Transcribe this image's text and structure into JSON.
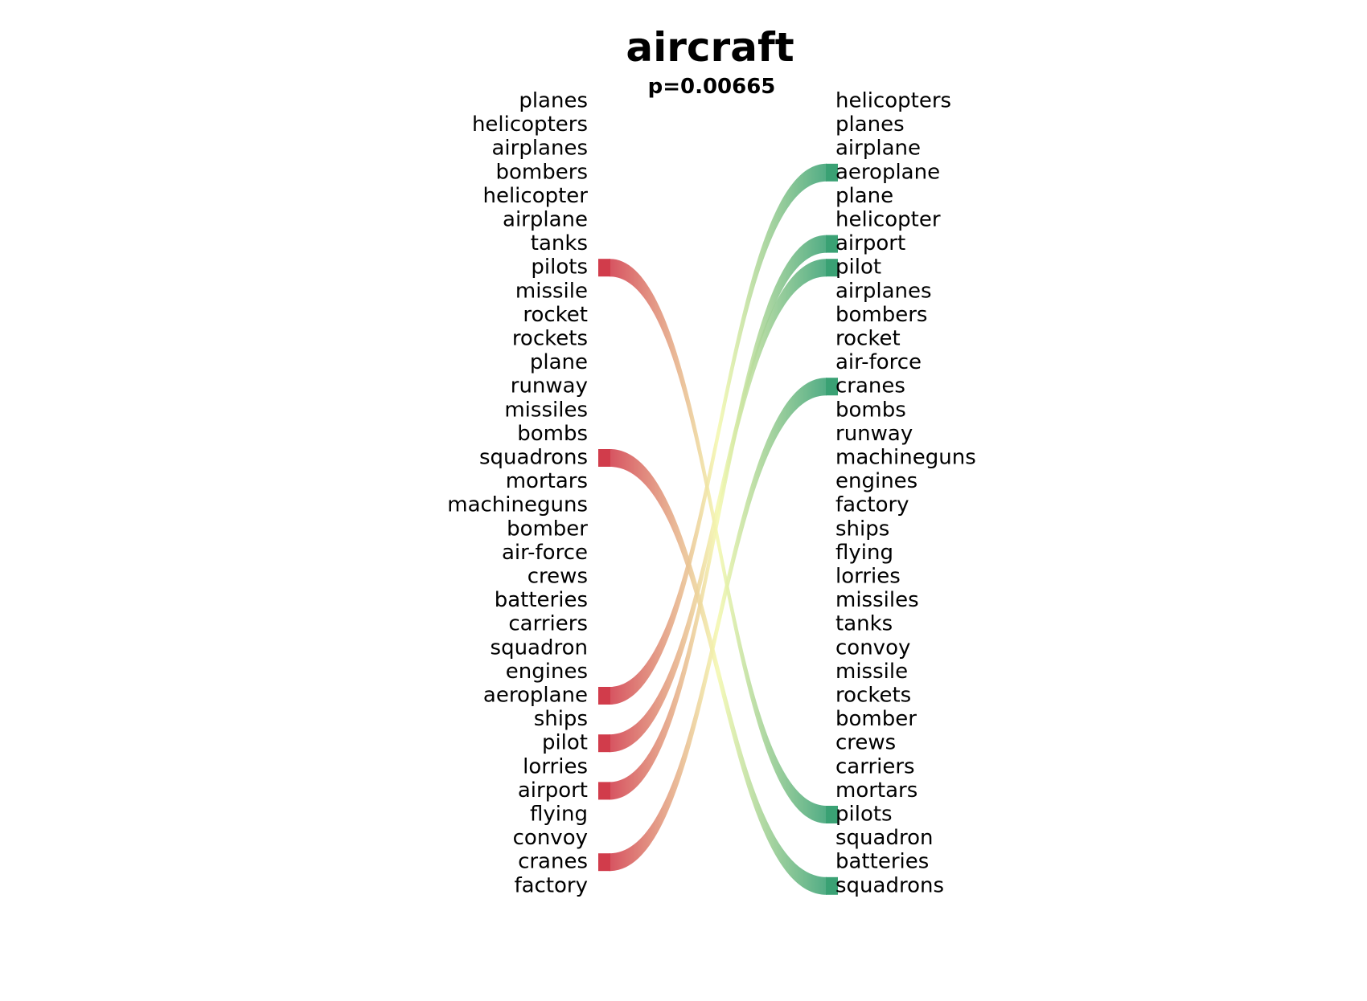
{
  "title": "aircraft",
  "subtitle": "p=0.00665",
  "colors": {
    "left_end": "#d13c4b",
    "mid": "#f4f8b0",
    "right_end": "#3aa174",
    "text": "#000000"
  },
  "chart_data": {
    "type": "bump",
    "left_words": [
      "planes",
      "helicopters",
      "airplanes",
      "bombers",
      "helicopter",
      "airplane",
      "tanks",
      "pilots",
      "missile",
      "rocket",
      "rockets",
      "plane",
      "runway",
      "missiles",
      "bombs",
      "squadrons",
      "mortars",
      "machineguns",
      "bomber",
      "air-force",
      "crews",
      "batteries",
      "carriers",
      "squadron",
      "engines",
      "aeroplane",
      "ships",
      "pilot",
      "lorries",
      "airport",
      "flying",
      "convoy",
      "cranes",
      "factory"
    ],
    "right_words": [
      "helicopters",
      "planes",
      "airplane",
      "aeroplane",
      "plane",
      "helicopter",
      "airport",
      "pilot",
      "airplanes",
      "bombers",
      "rocket",
      "air-force",
      "cranes",
      "bombs",
      "runway",
      "machineguns",
      "engines",
      "factory",
      "ships",
      "flying",
      "lorries",
      "missiles",
      "tanks",
      "convoy",
      "missile",
      "rockets",
      "bomber",
      "crews",
      "carriers",
      "mortars",
      "pilots",
      "squadron",
      "batteries",
      "squadrons"
    ],
    "links": [
      {
        "word": "pilots",
        "left_rank": 7,
        "right_rank": 30
      },
      {
        "word": "squadrons",
        "left_rank": 15,
        "right_rank": 33
      },
      {
        "word": "aeroplane",
        "left_rank": 25,
        "right_rank": 3
      },
      {
        "word": "pilot",
        "left_rank": 27,
        "right_rank": 7
      },
      {
        "word": "airport",
        "left_rank": 29,
        "right_rank": 6
      },
      {
        "word": "cranes",
        "left_rank": 32,
        "right_rank": 12
      }
    ]
  }
}
